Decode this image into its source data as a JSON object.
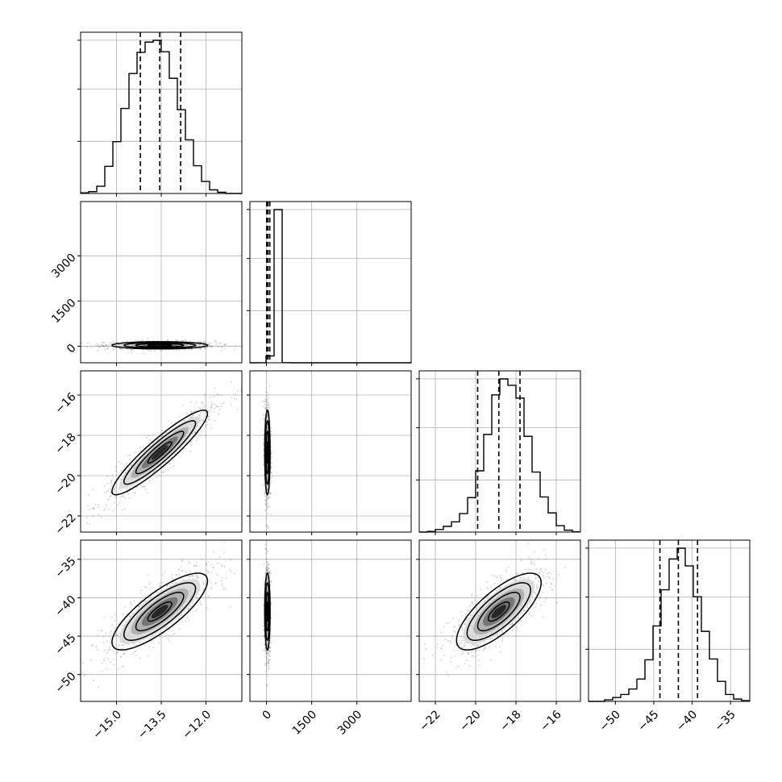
{
  "chart_data": {
    "type": "corner",
    "grid": true,
    "parameters": [
      {
        "ticks": [
          -15.0,
          -13.5,
          -12.0
        ],
        "tick_labels": [
          "−15.0",
          "−13.5",
          "−12.0"
        ],
        "range": [
          -16.2,
          -10.8
        ],
        "quantiles": [
          -14.2,
          -13.55,
          -12.85
        ],
        "histogram": {
          "edges": [
            -16.2,
            -15.93,
            -15.66,
            -15.39,
            -15.12,
            -14.85,
            -14.58,
            -14.31,
            -14.04,
            -13.77,
            -13.5,
            -13.23,
            -12.96,
            -12.69,
            -12.42,
            -12.15,
            -11.88,
            -11.61,
            -11.34,
            -11.07,
            -10.8
          ],
          "counts": [
            2,
            6,
            24,
            90,
            172,
            282,
            398,
            468,
            502,
            508,
            470,
            382,
            278,
            178,
            92,
            40,
            12,
            4,
            0,
            0
          ]
        }
      },
      {
        "ticks": [
          0,
          1500,
          3000
        ],
        "tick_labels": [
          "0",
          "1500",
          "3000"
        ],
        "range": [
          -550,
          4800
        ],
        "quantiles": [
          5,
          50,
          110
        ],
        "histogram": {
          "edges": [
            -550,
            -283,
            -15,
            252,
            520,
            787,
            1055,
            1322,
            1590,
            1857,
            2125,
            2392,
            2660,
            2927,
            3195,
            3462,
            3730,
            3997,
            4265,
            4532,
            4800
          ],
          "counts": [
            0,
            2,
            210,
            4740,
            4,
            0,
            0,
            0,
            0,
            0,
            0,
            0,
            0,
            0,
            0,
            0,
            0,
            0,
            0,
            0
          ]
        }
      },
      {
        "ticks": [
          -22,
          -20,
          -18,
          -16
        ],
        "tick_labels": [
          "−22",
          "−20",
          "−18",
          "−16"
        ],
        "range": [
          -22.8,
          -14.8
        ],
        "quantiles": [
          -19.9,
          -18.85,
          -17.8
        ],
        "histogram": {
          "edges": [
            -22.8,
            -22.4,
            -22.0,
            -21.6,
            -21.2,
            -20.8,
            -20.4,
            -20.0,
            -19.6,
            -19.2,
            -18.8,
            -18.4,
            -18.0,
            -17.6,
            -17.2,
            -16.8,
            -16.4,
            -16.0,
            -15.6,
            -15.2,
            -14.8
          ],
          "counts": [
            0,
            2,
            8,
            18,
            32,
            58,
            108,
            192,
            306,
            430,
            480,
            460,
            420,
            300,
            188,
            110,
            60,
            20,
            6,
            1
          ]
        }
      },
      {
        "ticks": [
          -50,
          -45,
          -40,
          -35
        ],
        "tick_labels": [
          "−50",
          "−45",
          "−40",
          "−35"
        ],
        "range": [
          -53.5,
          -32.5
        ],
        "quantiles": [
          -44.2,
          -41.8,
          -39.3
        ],
        "histogram": {
          "edges": [
            -53.5,
            -52.45,
            -51.4,
            -50.35,
            -49.3,
            -48.25,
            -47.2,
            -46.15,
            -45.1,
            -44.05,
            -43.0,
            -41.95,
            -40.9,
            -39.85,
            -38.8,
            -37.75,
            -36.7,
            -35.65,
            -34.6,
            -33.55,
            -32.5
          ],
          "counts": [
            0,
            0,
            4,
            10,
            18,
            32,
            58,
            108,
            196,
            290,
            370,
            398,
            352,
            272,
            182,
            110,
            52,
            18,
            6,
            2
          ]
        }
      }
    ],
    "panels_2d": [
      {
        "row": 1,
        "col": 0,
        "center": [
          -13.55,
          30
        ],
        "sigma": [
          0.8,
          60
        ],
        "rho": 0.0
      },
      {
        "row": 2,
        "col": 0,
        "center": [
          -13.55,
          -18.85
        ],
        "sigma": [
          0.8,
          1.05
        ],
        "rho": 0.92
      },
      {
        "row": 2,
        "col": 1,
        "center": [
          30,
          -18.85
        ],
        "sigma": [
          45,
          1.05
        ],
        "rho": 0.0
      },
      {
        "row": 3,
        "col": 0,
        "center": [
          -13.55,
          -41.8
        ],
        "sigma": [
          0.8,
          2.5
        ],
        "rho": 0.8
      },
      {
        "row": 3,
        "col": 1,
        "center": [
          30,
          -41.8
        ],
        "sigma": [
          45,
          2.5
        ],
        "rho": 0.0
      },
      {
        "row": 3,
        "col": 2,
        "center": [
          -18.85,
          -41.8
        ],
        "sigma": [
          1.05,
          2.5
        ],
        "rho": 0.75
      }
    ],
    "contour_levels_sigma": [
      0.5,
      1.0,
      1.5,
      2.0
    ],
    "y_tick_labels_rows": [
      {
        "row": 1,
        "param": 1
      },
      {
        "row": 2,
        "param": 2
      },
      {
        "row": 3,
        "param": 3
      }
    ]
  }
}
